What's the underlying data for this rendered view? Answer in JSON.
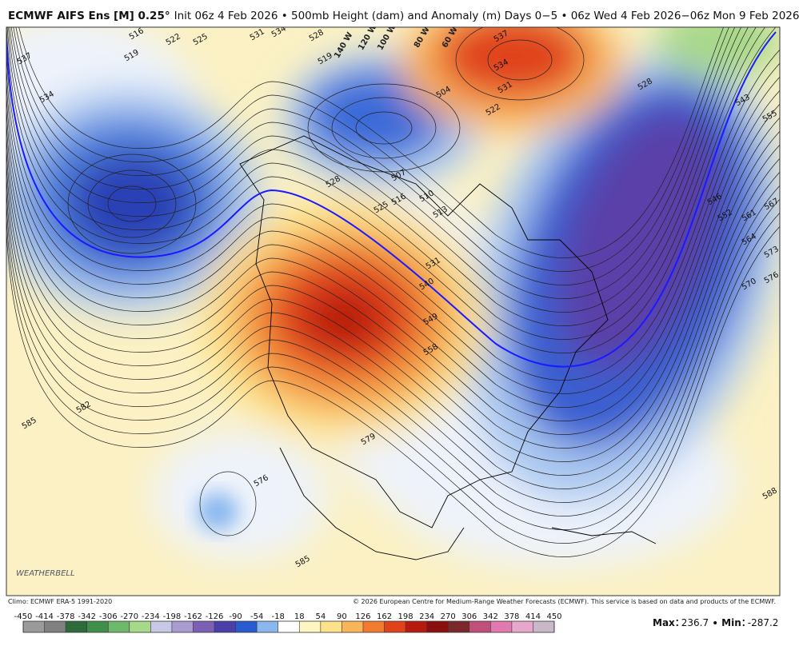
{
  "header": {
    "title": "ECMWF AIFS Ens [M] 0.25°",
    "subtitle": "Init 06z 4 Feb 2026 • 500mb Height (dam) and Anomaly (m)  Days 0−5 • 06z Wed 4 Feb 2026−06z Mon 9 Feb 2026"
  },
  "map": {
    "contour_labels": [
      516,
      519,
      522,
      525,
      531,
      534,
      528,
      537,
      534,
      519,
      537,
      534,
      531,
      522,
      528,
      543,
      555,
      546,
      552,
      561,
      567,
      564,
      573,
      570,
      576,
      504,
      507,
      510,
      513,
      516,
      528,
      525,
      531,
      540,
      549,
      558,
      579,
      582,
      585,
      576,
      585,
      588
    ],
    "longitude_labels": [
      "140 W",
      "120 W",
      "100 W",
      "80 W",
      "60 W"
    ]
  },
  "footer": {
    "climo": "Climo: ECMWF ERA-5 1991-2020",
    "copyright": "© 2026 European Centre for Medium-Range Weather Forecasts (ECMWF). This service is based on data and products of the ECMWF.",
    "logo": "WEATHERBELL"
  },
  "colorbar": {
    "ticks": [
      -450,
      -414,
      -378,
      -342,
      -306,
      -270,
      -234,
      -198,
      -162,
      -126,
      -90,
      -54,
      -18,
      18,
      54,
      90,
      126,
      162,
      198,
      234,
      270,
      306,
      342,
      378,
      414,
      450
    ],
    "colors": [
      "#9a9a9a",
      "#808080",
      "#2e6b3a",
      "#3f8f4a",
      "#6db86a",
      "#a8d88a",
      "#c8c8e6",
      "#a99bd0",
      "#7d5fb5",
      "#4a3fa8",
      "#2a5bd0",
      "#8ab8ee",
      "#ffffff",
      "#fff6c0",
      "#fde28a",
      "#f9b55a",
      "#f27a2e",
      "#e0421a",
      "#b81a10",
      "#8a1010",
      "#7a2a2a",
      "#c0507a",
      "#e07ab0",
      "#e8a8cc",
      "#c8b8c8"
    ]
  },
  "stats": [
    {
      "label": "Max",
      "value": 236.7
    },
    {
      "label": "Min",
      "value": -287.2
    }
  ]
}
